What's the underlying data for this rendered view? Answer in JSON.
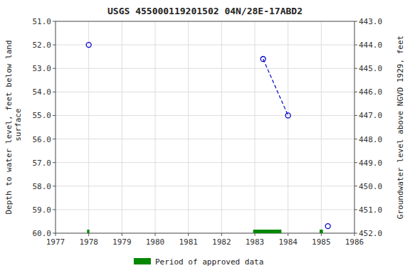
{
  "chart_data": {
    "type": "scatter",
    "title": "USGS 455000119201502 04N/28E-17ABD2",
    "y_label": "Depth to water level, feet below land\n surface",
    "y2_label": "Groundwater level above NGVD 1929, feet",
    "xlim": [
      1977,
      1986
    ],
    "xticks": [
      1977,
      1978,
      1979,
      1980,
      1981,
      1982,
      1983,
      1984,
      1985,
      1986
    ],
    "ylim": [
      60.0,
      51.0
    ],
    "yticks": [
      {
        "value": 51.0,
        "label": "51.0"
      },
      {
        "value": 52.0,
        "label": "52.0"
      },
      {
        "value": 53.0,
        "label": "53.0"
      },
      {
        "value": 54.0,
        "label": "54.0"
      },
      {
        "value": 55.0,
        "label": "55.0"
      },
      {
        "value": 56.0,
        "label": "56.0"
      },
      {
        "value": 57.0,
        "label": "57.0"
      },
      {
        "value": 58.0,
        "label": "58.0"
      },
      {
        "value": 59.0,
        "label": "59.0"
      },
      {
        "value": 60.0,
        "label": "60.0"
      }
    ],
    "y2lim": [
      452.0,
      443.0
    ],
    "y2ticks": [
      {
        "value": 452.0,
        "label": "452.0"
      },
      {
        "value": 451.0,
        "label": "451.0"
      },
      {
        "value": 450.0,
        "label": "450.0"
      },
      {
        "value": 449.0,
        "label": "449.0"
      },
      {
        "value": 448.0,
        "label": "448.0"
      },
      {
        "value": 447.0,
        "label": "447.0"
      },
      {
        "value": 446.0,
        "label": "446.0"
      },
      {
        "value": 445.0,
        "label": "445.0"
      },
      {
        "value": 444.0,
        "label": "444.0"
      },
      {
        "value": 443.0,
        "label": "443.0"
      }
    ],
    "grid": true,
    "legend": "bottom",
    "series": [
      {
        "type": "scatter",
        "color": "#0000cc",
        "marker": "circle",
        "x": [
          1978.0,
          1985.2
        ],
        "values": [
          52.0,
          59.7
        ]
      },
      {
        "type": "line",
        "color": "#0000cc",
        "marker": "circle",
        "line_style": "dashed",
        "x": [
          1983.25,
          1984.0
        ],
        "values": [
          52.6,
          55.0
        ]
      },
      {
        "type": "span",
        "name": "Period of approved data",
        "color": "#008800",
        "x": [
          1977.95,
          1982.95,
          1984.95
        ],
        "widths": [
          0.07,
          0.85,
          0.1
        ]
      }
    ]
  }
}
